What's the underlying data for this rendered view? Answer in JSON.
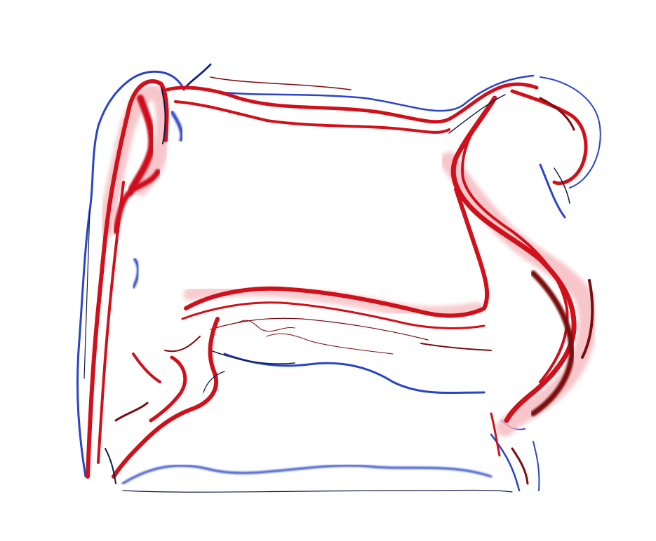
{
  "image": {
    "subject": "abstract-fluid-vorticity-field",
    "colors": {
      "background": "#ffffff",
      "red": "#d0101a",
      "dark_red": "#7a0c10",
      "pink": "#f4b8bd",
      "blue": "#2a44c8",
      "dark_blue": "#121a4a",
      "light_blue": "#8fa3e8"
    }
  }
}
